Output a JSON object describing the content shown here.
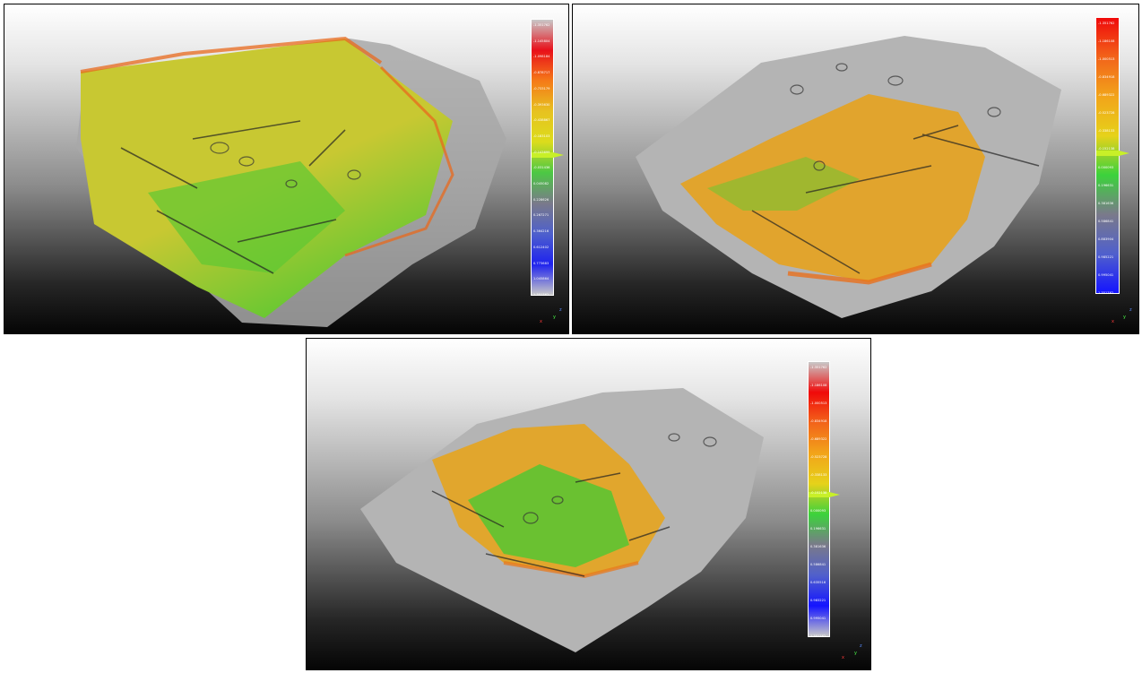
{
  "panels": [
    {
      "id": "a",
      "colors": {
        "surface_main": "#c8c832",
        "surface_green": "#5ec832",
        "rim": "#e86a1e",
        "background_points": "#a8a8a8"
      },
      "scalar_bar": {
        "ticks": [
          "1.351762",
          "1.045864",
          "0.773683",
          "0.612402",
          "0.364216",
          "0.267271",
          "0.228626",
          "0.045082",
          "-0.031436",
          "-0.143699",
          "-0.183103",
          "-0.438867",
          "-0.393630",
          "-0.733179",
          "-0.878717",
          "-1.098184",
          "-1.145804",
          "-1.351762"
        ],
        "stops": [
          "#c8c8c8",
          "#e8101a",
          "#f57a18",
          "#e7c220",
          "#dcdc1c",
          "#4cc844",
          "#7a7a8a",
          "#4e60cc",
          "#1e22ee",
          "#c8c8c8"
        ]
      },
      "axis": {
        "x": "x",
        "y": "y",
        "z": "z"
      }
    },
    {
      "id": "b",
      "colors": {
        "surface_main": "#e6a21e",
        "surface_green": "#6cc632",
        "rim": "#e8701e",
        "background_points": "#b4b4b4"
      },
      "scalar_bar": {
        "ticks": [
          "1.351762",
          "0.995041",
          "0.985221",
          "0.883904",
          "0.586841",
          "0.381636",
          "0.196631",
          "0.000093",
          "-0.152138",
          "-0.338133",
          "-0.523728",
          "-0.689322",
          "-0.834918",
          "-1.000513",
          "-1.186108",
          "-1.351762"
        ],
        "stops": [
          "#f00a0a",
          "#f2641a",
          "#f2a41a",
          "#e6d21a",
          "#3cd23c",
          "#7a7a8a",
          "#5060cc",
          "#1414ff"
        ]
      },
      "axis": {
        "x": "x",
        "y": "y",
        "z": "z"
      }
    },
    {
      "id": "c",
      "colors": {
        "surface_main": "#e6a41e",
        "surface_green": "#4cc832",
        "rim": "#e87a1e",
        "background_points": "#b4b4b4"
      },
      "scalar_bar": {
        "ticks": [
          "1.351762",
          "0.995041",
          "0.983221",
          "0.635516",
          "0.586841",
          "0.381636",
          "0.196631",
          "0.000093",
          "-0.152138",
          "-0.338133",
          "-0.523728",
          "-0.689322",
          "-0.834918",
          "-1.000513",
          "-1.186108",
          "-1.351762"
        ],
        "stops": [
          "#c8c8c8",
          "#f00a0a",
          "#f2641a",
          "#f2a41a",
          "#e6d21a",
          "#3cd23c",
          "#7a7a8a",
          "#5060cc",
          "#1414ff",
          "#c8c8c8"
        ]
      },
      "axis": {
        "x": "x",
        "y": "y",
        "z": "z"
      }
    }
  ]
}
